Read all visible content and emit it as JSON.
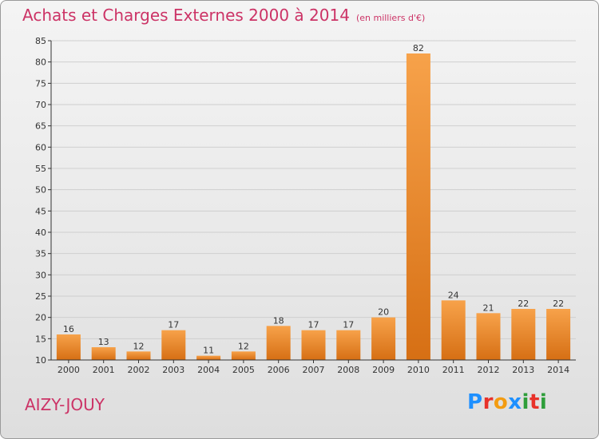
{
  "title": "Achats et Charges Externes 2000 à 2014",
  "subtitle": "(en milliers d'€)",
  "place": "AIZY-JOUY",
  "logo": {
    "text": "Proxiti",
    "letters": [
      "P",
      "r",
      "o",
      "x",
      "i",
      "t",
      "i"
    ],
    "colors": [
      "#1e90ff",
      "#e8322a",
      "#f39c12",
      "#1e90ff",
      "#2e9e3a",
      "#e8322a",
      "#2e9e3a"
    ]
  },
  "colors": {
    "title": "#cc3366",
    "bar_light": "#f7a24a",
    "bar_dark": "#d66f14",
    "grid": "#cfcfcf",
    "axis": "#333333"
  },
  "chart_data": {
    "type": "bar",
    "title": "Achats et Charges Externes 2000 à 2014",
    "subtitle": "(en milliers d'€)",
    "categories": [
      "2000",
      "2001",
      "2002",
      "2003",
      "2004",
      "2005",
      "2006",
      "2007",
      "2008",
      "2009",
      "2010",
      "2011",
      "2012",
      "2013",
      "2014"
    ],
    "values": [
      16,
      13,
      12,
      17,
      11,
      12,
      18,
      17,
      17,
      20,
      82,
      24,
      21,
      22,
      22
    ],
    "data_labels": [
      "16",
      "13",
      "12",
      "17",
      "11",
      "12",
      "18",
      "17",
      "17",
      "20",
      "82",
      "24",
      "21",
      "22",
      "22"
    ],
    "ylim": [
      10,
      85
    ],
    "yticks": [
      10,
      15,
      20,
      25,
      30,
      35,
      40,
      45,
      50,
      55,
      60,
      65,
      70,
      75,
      80,
      85
    ],
    "grid": true,
    "legend": false,
    "xlabel": "",
    "ylabel": ""
  }
}
